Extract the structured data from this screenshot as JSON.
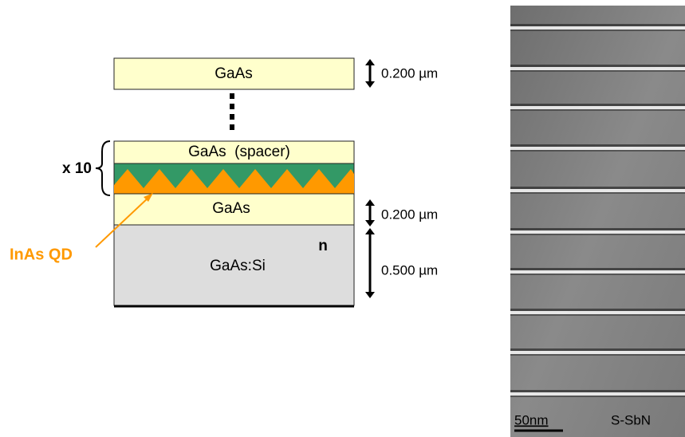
{
  "diagram": {
    "layers": [
      {
        "label": "GaAs",
        "thickness": "0.200 µm"
      },
      {
        "label": "GaAs  (spacer)"
      },
      {
        "label": "GaAs",
        "thickness": "0.200 µm"
      },
      {
        "label": "GaAs:Si",
        "thickness": "0.500 µm",
        "doping": "n"
      }
    ],
    "repeat": "x 10",
    "quantum_dot_label": "InAs QD"
  },
  "image": {
    "scale_bar": "50nm",
    "sample": "S-SbN"
  }
}
